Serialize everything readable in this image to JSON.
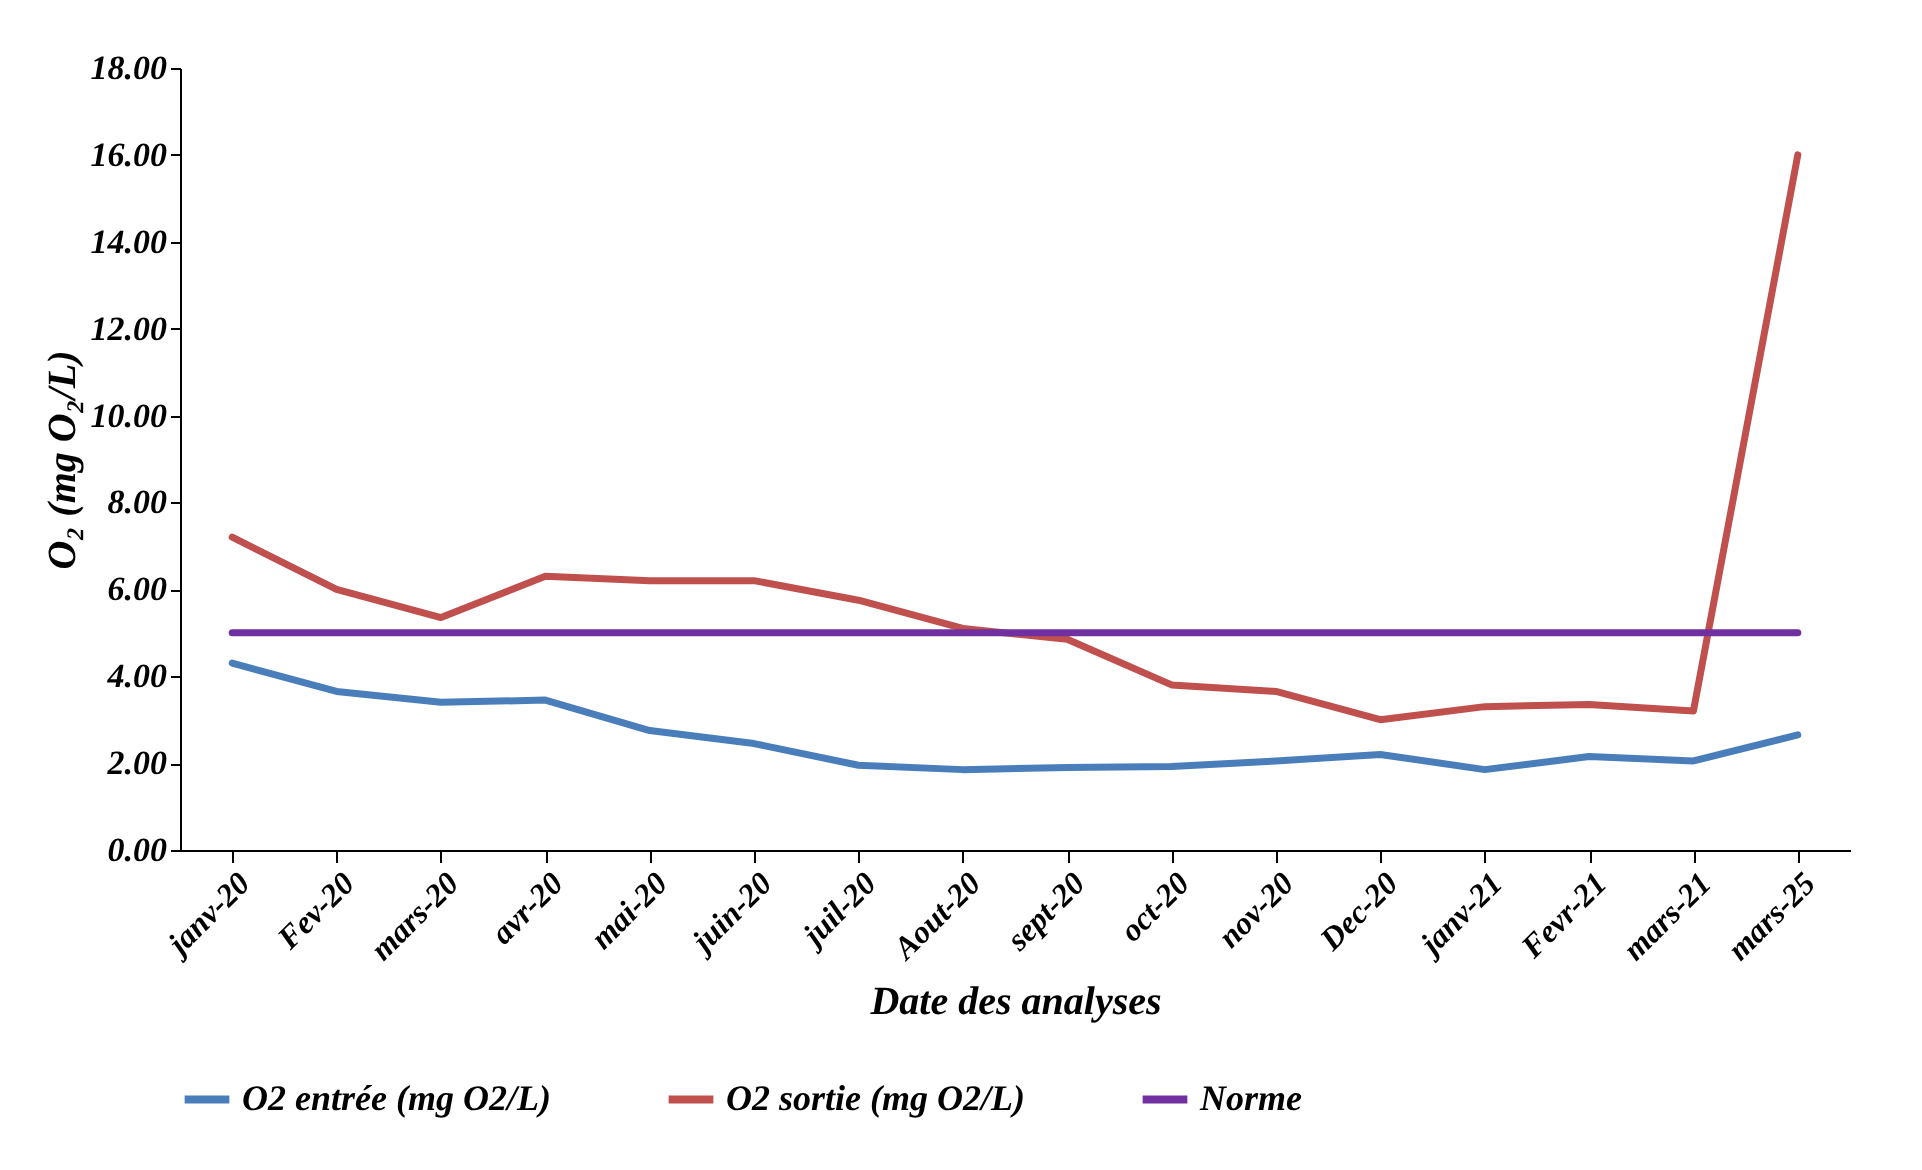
{
  "chart_data": {
    "type": "line",
    "xlabel": "Date des analyses",
    "ylabel": "O₂ (mg O₂/L)",
    "categories": [
      "janv-20",
      "Fev-20",
      "mars-20",
      "avr-20",
      "mai-20",
      "juin-20",
      "juil-20",
      "Aout-20",
      "sept-20",
      "oct-20",
      "nov-20",
      "Dec-20",
      "janv-21",
      "Fevr-21",
      "mars-21",
      "mars-25"
    ],
    "series": [
      {
        "name": "O2 entrée (mg O2/L)",
        "color": "#4a7ebb",
        "values": [
          4.3,
          3.65,
          3.4,
          3.45,
          2.75,
          2.45,
          1.95,
          1.85,
          1.9,
          1.92,
          2.05,
          2.2,
          1.85,
          2.15,
          2.05,
          2.65
        ]
      },
      {
        "name": "O2 sortie (mg O2/L)",
        "color": "#c0504d",
        "values": [
          7.2,
          6.0,
          5.35,
          6.3,
          6.2,
          6.2,
          5.75,
          5.1,
          4.85,
          3.8,
          3.65,
          3.0,
          3.3,
          3.35,
          3.2,
          16.0
        ]
      },
      {
        "name": "Norme",
        "color": "#7030a0",
        "values": [
          5,
          5,
          5,
          5,
          5,
          5,
          5,
          5,
          5,
          5,
          5,
          5,
          5,
          5,
          5,
          5
        ]
      }
    ],
    "ylim": [
      0,
      18
    ],
    "yticks": [
      {
        "value": 0,
        "label": "0.00"
      },
      {
        "value": 2,
        "label": "2.00"
      },
      {
        "value": 4,
        "label": "4.00"
      },
      {
        "value": 6,
        "label": "6.00"
      },
      {
        "value": 8,
        "label": "8.00"
      },
      {
        "value": 10,
        "label": "10.00"
      },
      {
        "value": 12,
        "label": "12.00"
      },
      {
        "value": 14,
        "label": "14.00"
      },
      {
        "value": 16,
        "label": "16.00"
      },
      {
        "value": 18,
        "label": "18.00"
      }
    ],
    "grid": false,
    "legend": "bottom",
    "marker": "none",
    "line_style": "solid"
  }
}
